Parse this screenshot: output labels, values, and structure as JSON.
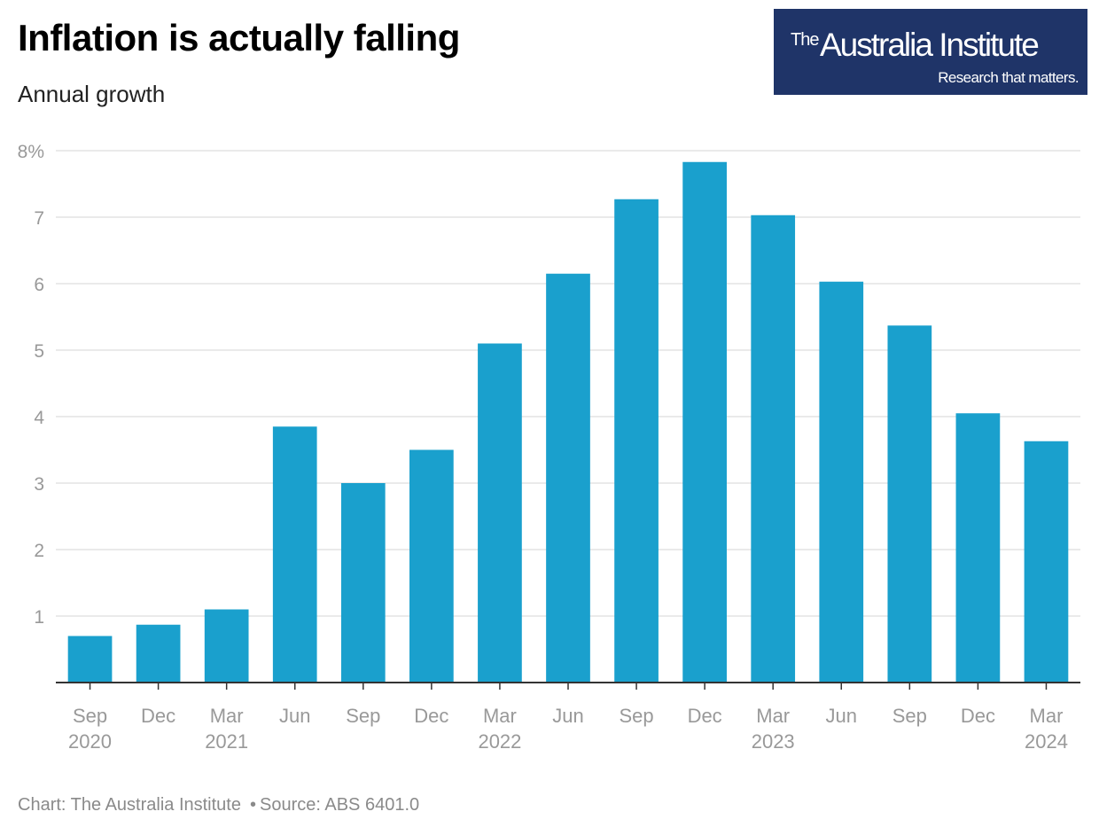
{
  "header": {
    "title": "Inflation is actually falling",
    "subtitle": "Annual growth"
  },
  "logo": {
    "the": "The",
    "name": "Australia Institute",
    "tagline": "Research that matters."
  },
  "footer": {
    "credit": "Chart: The Australia Institute",
    "separator": "•",
    "source": "Source: ABS 6401.0"
  },
  "colors": {
    "bar": "#1aa0cd",
    "grid": "#e3e3e3",
    "axis": "#333333",
    "tick_text": "#999999",
    "logo_bg": "#1f3468"
  },
  "chart_data": {
    "type": "bar",
    "title": "Inflation is actually falling",
    "subtitle": "Annual growth",
    "categories": [
      [
        "Sep",
        "2020"
      ],
      [
        "Dec",
        ""
      ],
      [
        "Mar",
        "2021"
      ],
      [
        "Jun",
        ""
      ],
      [
        "Sep",
        ""
      ],
      [
        "Dec",
        ""
      ],
      [
        "Mar",
        "2022"
      ],
      [
        "Jun",
        ""
      ],
      [
        "Sep",
        ""
      ],
      [
        "Dec",
        ""
      ],
      [
        "Mar",
        "2023"
      ],
      [
        "Jun",
        ""
      ],
      [
        "Sep",
        ""
      ],
      [
        "Dec",
        ""
      ],
      [
        "Mar",
        "2024"
      ]
    ],
    "values": [
      0.7,
      0.87,
      1.1,
      3.85,
      3.0,
      3.5,
      5.1,
      6.15,
      7.27,
      7.83,
      7.03,
      6.03,
      5.37,
      4.05,
      3.63
    ],
    "ylim": [
      0,
      8
    ],
    "yticks": [
      1,
      2,
      3,
      4,
      5,
      6,
      7,
      8
    ],
    "ytick_labels": [
      "1",
      "2",
      "3",
      "4",
      "5",
      "6",
      "7",
      "8%"
    ],
    "grid": true,
    "legend": "none"
  }
}
